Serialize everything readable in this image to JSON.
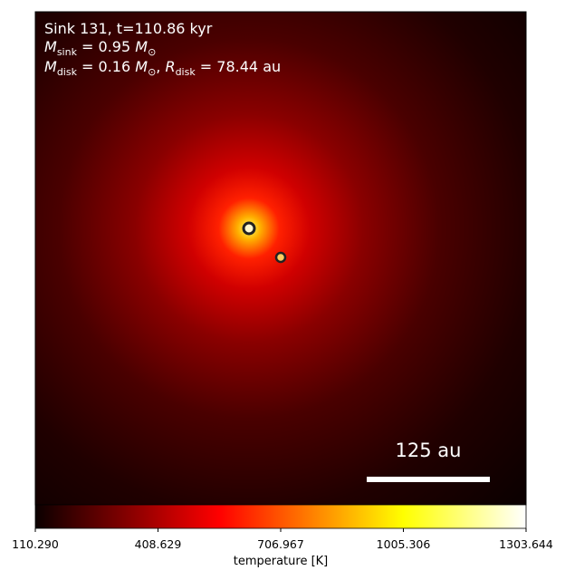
{
  "chart_data": {
    "type": "image",
    "annotations": {
      "line1": "Sink 131, t=110.86 kyr",
      "line2": [
        "M",
        "sink",
        " = 0.95 ",
        "M",
        "⊙"
      ],
      "line3": [
        "M",
        "disk",
        " = 0.16 ",
        "M",
        "⊙",
        ", ",
        "R",
        "disk",
        " = 78.44 au"
      ],
      "scalebar": "125 au"
    },
    "colormap": "hot",
    "colorbar_label": "temperature [K]",
    "clim": [
      110.29,
      1303.644
    ],
    "colorbar_ticks": [
      {
        "value": 110.29,
        "label": "110.290"
      },
      408.629,
      706.967,
      1005.306,
      1303.644
    ]
  }
}
